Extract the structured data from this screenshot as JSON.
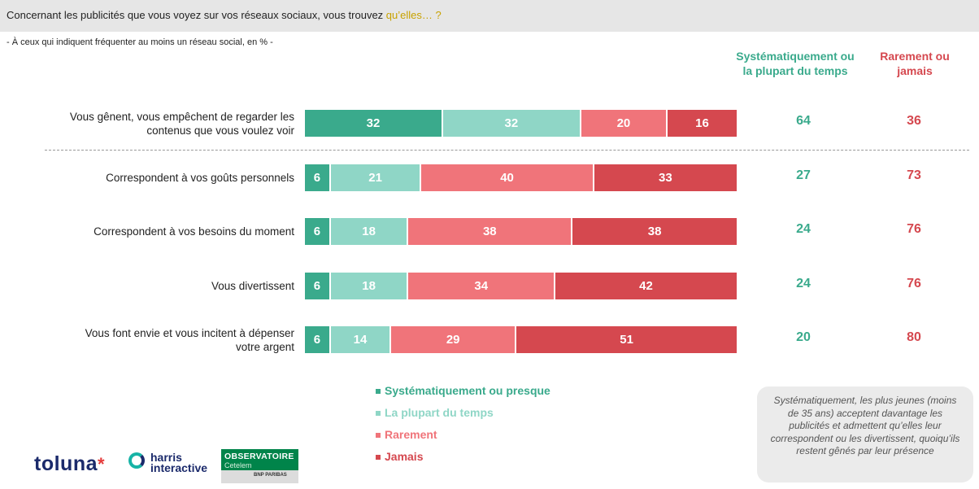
{
  "header": {
    "question": "Concernant les publicités que vous voyez sur vos réseaux sociaux, vous trouvez ",
    "question_accent": "qu’elles… ?",
    "subtitle": "- À ceux qui indiquent fréquenter au moins un réseau social, en % -"
  },
  "column_headers": {
    "positive_line1": "Systématiquement ou",
    "positive_line2": "la plupart du temps",
    "negative_line1": "Rarement ou",
    "negative_line2": "jamais"
  },
  "colors": {
    "systematiquement": "#3aaa8c",
    "plupart": "#8fd6c6",
    "rarement": "#f0747a",
    "jamais": "#d5484f"
  },
  "chart_data": {
    "type": "bar",
    "orientation": "horizontal-stacked-100",
    "categories": [
      "Vous gênent, vous empêchent de regarder les contenus que vous voulez voir",
      "Correspondent à vos goûts personnels",
      "Correspondent à vos besoins du moment",
      "Vous divertissent",
      "Vous font envie et vous incitent à dépenser votre argent"
    ],
    "category_lines": [
      [
        "Vous gênent, vous empêchent de regarder les",
        "contenus que vous voulez voir"
      ],
      [
        "Correspondent à vos goûts personnels"
      ],
      [
        "Correspondent à vos besoins du moment"
      ],
      [
        "Vous divertissent"
      ],
      [
        "Vous font envie et vous incitent à dépenser",
        "votre argent"
      ]
    ],
    "series": [
      {
        "name": "Systématiquement ou presque",
        "values": [
          32,
          6,
          6,
          6,
          6
        ]
      },
      {
        "name": "La plupart du temps",
        "values": [
          32,
          21,
          18,
          18,
          14
        ]
      },
      {
        "name": "Rarement",
        "values": [
          20,
          40,
          38,
          34,
          29
        ]
      },
      {
        "name": "Jamais",
        "values": [
          16,
          33,
          38,
          42,
          51
        ]
      }
    ],
    "totals_positive": [
      64,
      27,
      24,
      24,
      20
    ],
    "totals_negative": [
      36,
      73,
      76,
      76,
      80
    ],
    "legend_position": "bottom"
  },
  "legend": [
    "Systématiquement ou presque",
    "La plupart du temps",
    "Rarement",
    "Jamais"
  ],
  "note": "Systématiquement, les plus jeunes (moins de 35 ans) acceptent davantage les publicités et admettent qu’elles leur correspondent ou les divertissent, quoiqu’ils restent gênés par leur présence",
  "logos": {
    "toluna": "toluna",
    "harris_line1": "harris",
    "harris_line2": "interactive",
    "obs_title": "OBSERVATOIRE",
    "obs_sub": "Cetelem",
    "obs_bnp": "BNP PARIBAS"
  }
}
